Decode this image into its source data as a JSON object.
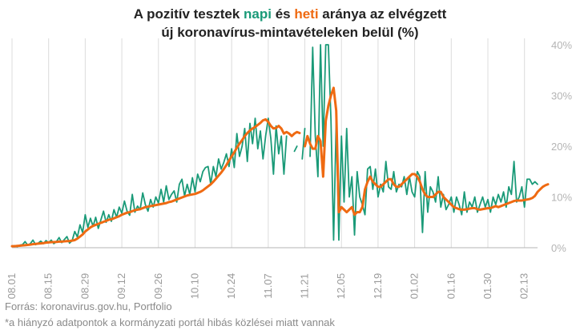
{
  "title": {
    "l1_a": "A pozitív tesztek ",
    "l1_napi": "napi",
    "l1_b": " és ",
    "l1_heti": "heti",
    "l1_c": " aránya az elvégzett",
    "line2": "új koronavírus-mintavételeken belül (%)"
  },
  "source": "Forrás: koronavirus.gov.hu, Portfolio",
  "footnote": "*a hiányzó adatpontok a kormányzati portál hibás közlései miatt vannak",
  "colors": {
    "napi": "#1a9a78",
    "heti": "#ef6a12",
    "grid": "#dcdcdc",
    "axis": "#b4b4b4"
  },
  "chart_data": {
    "type": "line",
    "xlabel": "",
    "ylabel": "",
    "ylim": [
      0,
      40
    ],
    "y_ticks": [
      0,
      10,
      20,
      30,
      40
    ],
    "y_tick_labels": [
      "0%",
      "10%",
      "20%",
      "30%",
      "40%"
    ],
    "x_tick_labels": [
      "08.01",
      "08.15",
      "08.29",
      "09.12",
      "09.26",
      "10.10",
      "10.24",
      "11.07",
      "11.21",
      "12.05",
      "12.19",
      "01.02",
      "01.16",
      "01.30",
      "02.13"
    ],
    "grid": "vertical",
    "series": [
      {
        "name": "napi",
        "values": [
          0.3,
          0.4,
          0.2,
          0.5,
          0.6,
          1.2,
          0.5,
          0.8,
          1.5,
          0.6,
          0.9,
          1.3,
          0.8,
          1.4,
          1.0,
          1.5,
          0.8,
          1.2,
          2.0,
          1.0,
          1.6,
          2.2,
          0.9,
          1.4,
          3.2,
          2.1,
          4.5,
          3.0,
          6.5,
          4.0,
          5.8,
          4.2,
          6.0,
          3.8,
          5.5,
          7.2,
          5.0,
          6.5,
          5.2,
          7.5,
          6.0,
          8.0,
          6.8,
          9.2,
          7.2,
          6.4,
          10.5,
          7.0,
          8.2,
          7.5,
          10.8,
          8.5,
          7.2,
          9.5,
          8.0,
          10.0,
          8.8,
          11.5,
          9.0,
          12.2,
          9.5,
          10.5,
          11.2,
          9.0,
          12.5,
          13.5,
          10.2,
          12.5,
          10.5,
          13.8,
          11.0,
          14.5,
          13.0,
          15.0,
          15.8,
          16.0,
          12.5,
          16.0,
          14.0,
          17.5,
          15.5,
          16.8,
          18.5,
          16.0,
          19.5,
          15.8,
          22.5,
          18.0,
          20.0,
          23.5,
          17.0,
          24.5,
          20.5,
          25.5,
          19.5,
          23.0,
          17.5,
          22.0,
          25.5,
          21.5,
          14.5,
          24.0,
          18.5,
          22.0,
          14.5,
          22.0,
          null,
          null,
          19.0,
          20.0,
          null,
          17.5,
          23.5,
          null,
          18.0,
          39.5,
          22.0,
          14.0,
          40.0,
          20.0,
          42.0,
          40.0,
          25.0,
          1.5,
          25.0,
          1.5,
          22.0,
          9.0,
          23.5,
          10.0,
          14.0,
          2.5,
          15.0,
          10.0,
          8.5,
          6.5,
          15.5,
          16.0,
          11.5,
          15.5,
          10.0,
          12.5,
          11.0,
          17.0,
          12.0,
          11.5,
          15.0,
          11.0,
          12.5,
          12.0,
          14.0,
          10.5,
          14.0,
          11.0,
          10.0,
          15.0,
          14.0,
          3.0,
          15.0,
          7.0,
          12.0,
          11.0,
          9.0,
          14.0,
          8.0,
          10.5,
          7.5,
          8.5,
          10.0,
          7.0,
          10.0,
          8.5,
          6.5,
          11.0,
          7.0,
          9.0,
          8.0,
          10.0,
          7.0,
          8.5,
          10.0,
          8.0,
          9.5,
          7.0,
          10.0,
          8.5,
          10.5,
          9.0,
          11.0,
          8.0,
          12.0,
          10.5,
          17.0,
          9.0,
          10.0,
          12.0,
          8.0,
          13.5,
          13.5,
          12.5,
          13.0,
          12.5
        ]
      },
      {
        "name": "heti",
        "values": [
          0.3,
          0.3,
          0.35,
          0.4,
          0.45,
          0.5,
          0.55,
          0.6,
          0.7,
          0.75,
          0.8,
          0.85,
          0.9,
          1.0,
          1.05,
          1.1,
          1.1,
          1.15,
          1.2,
          1.2,
          1.25,
          1.3,
          1.3,
          1.4,
          1.5,
          1.8,
          2.2,
          2.6,
          3.2,
          3.6,
          4.0,
          4.3,
          4.5,
          4.7,
          4.9,
          5.1,
          5.3,
          5.5,
          5.6,
          5.8,
          6.0,
          6.2,
          6.5,
          6.7,
          6.9,
          7.0,
          7.2,
          7.4,
          7.5,
          7.6,
          7.8,
          8.0,
          8.1,
          8.2,
          8.3,
          8.4,
          8.5,
          8.6,
          8.7,
          8.8,
          9.0,
          9.1,
          9.3,
          9.5,
          9.7,
          9.9,
          10.1,
          10.3,
          10.4,
          10.5,
          10.6,
          10.8,
          11.0,
          11.3,
          11.7,
          12.1,
          12.5,
          13.0,
          13.6,
          14.2,
          14.8,
          15.5,
          16.3,
          17.2,
          18.0,
          18.8,
          19.7,
          20.5,
          21.2,
          22.0,
          22.6,
          23.1,
          23.5,
          23.8,
          24.2,
          24.6,
          25.1,
          25.3,
          24.8,
          24.0,
          23.5,
          23.6,
          24.0,
          23.5,
          22.5,
          22.8,
          22.5,
          22.0,
          22.5,
          22.8,
          22.6,
          null,
          20.0,
          22.0,
          20.5,
          19.5,
          19.5,
          22.0,
          21.0,
          14.0,
          25.0,
          28.0,
          30.0,
          31.5,
          27.0,
          7.0,
          8.0,
          7.5,
          7.0,
          7.5,
          8.0,
          6.5,
          7.0,
          7.0,
          8.0,
          11.5,
          13.0,
          14.0,
          13.0,
          12.5,
          12.0,
          12.0,
          12.5,
          13.0,
          13.5,
          13.5,
          12.5,
          12.0,
          12.0,
          12.5,
          13.0,
          13.5,
          14.0,
          14.5,
          14.5,
          14.0,
          13.0,
          11.5,
          10.5,
          10.0,
          10.0,
          10.0,
          10.5,
          11.0,
          11.0,
          10.0,
          9.5,
          9.0,
          8.5,
          8.0,
          7.8,
          7.6,
          7.5,
          7.5,
          7.6,
          7.7,
          7.8,
          7.8,
          7.6,
          7.5,
          7.6,
          7.7,
          7.8,
          7.8,
          8.0,
          8.2,
          8.0,
          8.2,
          8.4,
          8.6,
          8.8,
          9.0,
          9.2,
          9.3,
          9.3,
          9.3,
          9.4,
          9.5,
          9.6,
          9.8,
          10.2,
          11.0,
          11.5,
          12.0,
          12.3,
          12.5
        ]
      }
    ]
  }
}
